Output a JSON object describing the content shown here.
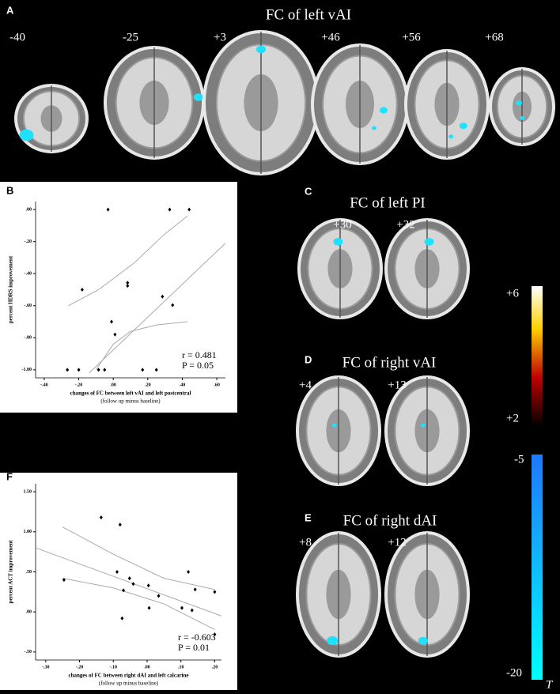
{
  "panels": {
    "A": {
      "letter": "A",
      "title": "FC of left vAI",
      "slices": [
        "-40",
        "-25",
        "+3",
        "+46",
        "+56",
        "+68"
      ]
    },
    "B": {
      "letter": "B"
    },
    "C": {
      "letter": "C",
      "title": "FC of left PI",
      "slices": [
        "+30",
        "+32"
      ]
    },
    "D": {
      "letter": "D",
      "title": "FC of right vAI",
      "slices": [
        "+4",
        "+13"
      ]
    },
    "E": {
      "letter": "E",
      "title": "FC of right dAI",
      "slices": [
        "+8",
        "+12"
      ]
    },
    "F": {
      "letter": "F"
    }
  },
  "colorbar": {
    "hot": [
      "+6",
      "+2"
    ],
    "cool": [
      "-5",
      "-20"
    ],
    "unit": "T"
  },
  "chart_data": [
    {
      "type": "scatter",
      "color": "#000000",
      "y_label": "percent HDRS improvement",
      "x_label": "changes of FC between left vAI and left postcentral",
      "x_sublabel": "(follow up minus baseline)",
      "stats": [
        "r = 0.481",
        "P = 0.05"
      ],
      "x": [
        -0.03,
        0.327,
        0.44,
        -0.18,
        0.083,
        0.083,
        0.285,
        0.344,
        -0.01,
        0.01,
        -0.266,
        -0.2,
        -0.085,
        -0.05,
        0.17,
        0.25
      ],
      "y": [
        0,
        0,
        0,
        -0.5,
        -0.457,
        -0.476,
        -0.543,
        -0.596,
        -0.7,
        -0.78,
        -1.0,
        -1.0,
        -1.0,
        -1.0,
        -1.0,
        -1.0
      ],
      "fit": {
        "x": [
          -0.14,
          0.65
        ],
        "y": [
          -1.02,
          -0.21
        ]
      },
      "ci_upper": {
        "x": [
          -0.26,
          -0.085,
          0.125,
          0.29,
          0.43
        ],
        "y": [
          -0.6,
          -0.5,
          -0.33,
          -0.16,
          -0.04
        ]
      },
      "ci_lower": {
        "x": [
          -0.1,
          0.0,
          0.1,
          0.25,
          0.43
        ],
        "y": [
          -1.0,
          -0.84,
          -0.76,
          -0.72,
          -0.7
        ]
      },
      "xlim": [
        -0.45,
        0.65
      ],
      "ylim": [
        -1.05,
        0.05
      ],
      "xticks": [
        {
          "value": -0.4,
          "label": "-.40"
        },
        {
          "value": -0.2,
          "label": "-.20"
        },
        {
          "value": 0,
          "label": ".00"
        },
        {
          "value": 0.2,
          "label": ".20"
        },
        {
          "value": 0.4,
          "label": ".40"
        },
        {
          "value": 0.6,
          "label": ".60"
        }
      ],
      "yticks": [
        {
          "value": 0,
          "label": ".00"
        },
        {
          "value": -0.2,
          "label": "-.20"
        },
        {
          "value": -0.4,
          "label": "-.40"
        },
        {
          "value": -0.6,
          "label": "-.60"
        },
        {
          "value": -0.8,
          "label": "-.80"
        },
        {
          "value": -1.0,
          "label": "-1.00"
        }
      ]
    },
    {
      "type": "scatter",
      "color": "#000000",
      "y_label": "percent ACT improvement",
      "x_label": "changes of FC between right dAI and left calcarine",
      "x_sublabel": "(follow up minus baseline)",
      "stats": [
        "r = -0.603",
        "P = 0.01"
      ],
      "x": [
        -0.136,
        -0.08,
        -0.246,
        -0.089,
        -0.052,
        -0.041,
        -0.07,
        -0.074,
        0.004,
        0.006,
        0.034,
        0.122,
        0.103,
        0.142,
        0.133,
        0.2,
        0.2
      ],
      "y": [
        1.18,
        1.09,
        0.4,
        0.5,
        0.42,
        0.35,
        0.27,
        -0.08,
        0.33,
        0.05,
        0.2,
        0.5,
        0.05,
        0.28,
        0.02,
        0.25,
        -0.28
      ],
      "fit": {
        "x": [
          -0.33,
          0.22
        ],
        "y": [
          0.8,
          -0.05
        ]
      },
      "ci_upper": {
        "x": [
          -0.25,
          -0.1,
          0.05,
          0.2
        ],
        "y": [
          1.06,
          0.72,
          0.42,
          0.28
        ]
      },
      "ci_lower": {
        "x": [
          -0.25,
          -0.1,
          0.05,
          0.2
        ],
        "y": [
          0.42,
          0.3,
          0.1,
          -0.22
        ]
      },
      "xlim": [
        -0.33,
        0.22
      ],
      "ylim": [
        -0.6,
        1.6
      ],
      "xticks": [
        {
          "value": -0.3,
          "label": "-.30"
        },
        {
          "value": -0.2,
          "label": "-.20"
        },
        {
          "value": -0.1,
          "label": "-.10"
        },
        {
          "value": 0,
          "label": ".00"
        },
        {
          "value": 0.1,
          "label": ".10"
        },
        {
          "value": 0.2,
          "label": ".20"
        }
      ],
      "yticks": [
        {
          "value": 1.5,
          "label": "1.50"
        },
        {
          "value": 1.0,
          "label": "1.00"
        },
        {
          "value": 0.5,
          "label": ".50"
        },
        {
          "value": 0,
          "label": ".00"
        },
        {
          "value": -0.5,
          "label": "-.50"
        }
      ]
    }
  ]
}
